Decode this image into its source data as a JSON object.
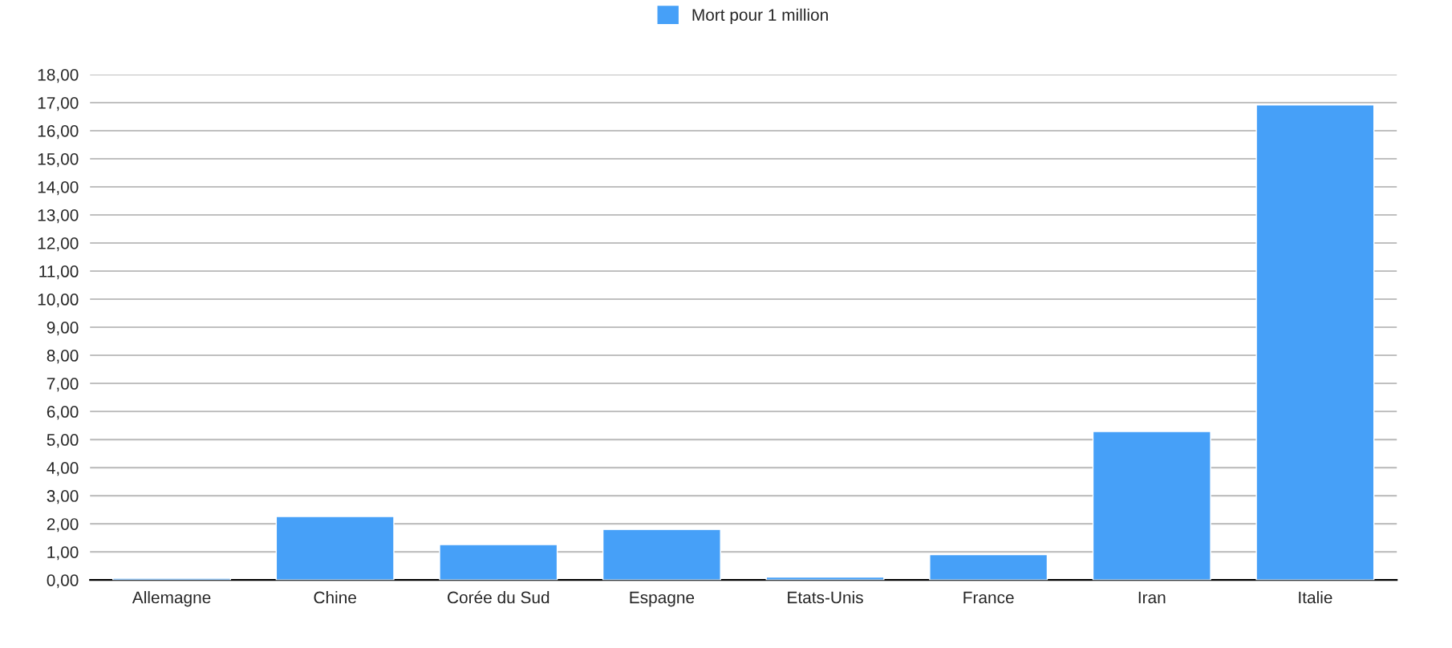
{
  "chart_data": {
    "type": "bar",
    "categories": [
      "Allemagne",
      "Chine",
      "Corée du Sud",
      "Espagne",
      "Etats-Unis",
      "France",
      "Iran",
      "Italie"
    ],
    "series": [
      {
        "name": "Mort pour 1 million",
        "color": "#46a0f8",
        "values": [
          0.06,
          2.26,
          1.26,
          1.8,
          0.1,
          0.9,
          5.29,
          16.92
        ]
      }
    ],
    "ylim": [
      0,
      18
    ],
    "yticks": [
      {
        "value": 0,
        "label": "0,00"
      },
      {
        "value": 1,
        "label": "1,00"
      },
      {
        "value": 2,
        "label": "2,00"
      },
      {
        "value": 3,
        "label": "3,00"
      },
      {
        "value": 4,
        "label": "4,00"
      },
      {
        "value": 5,
        "label": "5,00"
      },
      {
        "value": 6,
        "label": "6,00"
      },
      {
        "value": 7,
        "label": "7,00"
      },
      {
        "value": 8,
        "label": "8,00"
      },
      {
        "value": 9,
        "label": "9,00"
      },
      {
        "value": 10,
        "label": "10,00"
      },
      {
        "value": 11,
        "label": "11,00"
      },
      {
        "value": 12,
        "label": "12,00"
      },
      {
        "value": 13,
        "label": "13,00"
      },
      {
        "value": 14,
        "label": "14,00"
      },
      {
        "value": 15,
        "label": "15,00"
      },
      {
        "value": 16,
        "label": "16,00"
      },
      {
        "value": 17,
        "label": "17,00"
      },
      {
        "value": 18,
        "label": "18,00"
      }
    ],
    "grid": "y",
    "legend": "top"
  }
}
